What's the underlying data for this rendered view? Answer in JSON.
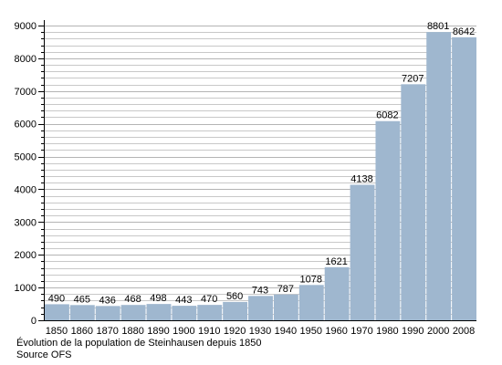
{
  "chart_data": {
    "type": "bar",
    "categories": [
      "1850",
      "1860",
      "1870",
      "1880",
      "1890",
      "1900",
      "1910",
      "1920",
      "1930",
      "1940",
      "1950",
      "1960",
      "1970",
      "1980",
      "1990",
      "2000",
      "2008"
    ],
    "values": [
      490,
      465,
      436,
      468,
      498,
      443,
      470,
      560,
      743,
      787,
      1078,
      1621,
      4138,
      6082,
      7207,
      8801,
      8642
    ],
    "data_labels": [
      "490",
      "465",
      "436",
      "468",
      "498",
      "443",
      "470",
      "560",
      "743",
      "787",
      "1078",
      "1621",
      "4138",
      "6082",
      "7207",
      "8801",
      "8642"
    ],
    "ylim": [
      0,
      9000
    ],
    "y_ticks": [
      0,
      1000,
      2000,
      3000,
      4000,
      5000,
      6000,
      7000,
      8000,
      9000
    ],
    "y_tick_labels": [
      "0",
      "1000",
      "2000",
      "3000",
      "4000",
      "5000",
      "6000",
      "7000",
      "8000",
      "9000"
    ],
    "y_minor_step": 200,
    "grid": true,
    "bar_color": "#9fb7cf",
    "grid_color": "#c8c8c8",
    "title": "",
    "xlabel": "",
    "ylabel": ""
  },
  "caption": {
    "line1": "Évolution de la population de Steinhausen depuis 1850",
    "line2": "Source OFS"
  }
}
